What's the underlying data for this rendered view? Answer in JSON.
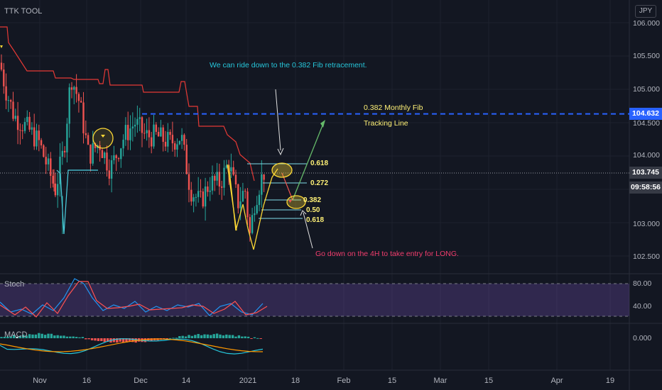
{
  "app": {
    "title": "TTK TOOL",
    "currency_button": "JPY"
  },
  "colors": {
    "background": "#131722",
    "bull_candle": "#26a69a",
    "bear_candle": "#ef5350",
    "trail_line": "#e53935",
    "fib_level": "#2962ff",
    "stoch_k": "#2196f3",
    "stoch_d": "#ff5252",
    "macd_line": "#26c6da",
    "signal_line": "#ff9800",
    "annotation_yellow": "#fff176",
    "annotation_cyan": "#26c6da",
    "annotation_pink": "#f23d6d"
  },
  "price_tags": {
    "fib_level": "104.632",
    "last_price": "103.745",
    "countdown": "09:58:56"
  },
  "annotations": {
    "ride_down": "We can ride down to the 0.382 Fib retracement.",
    "monthly_fib": "0.382 Monthly Fib",
    "tracking": "Tracking Line",
    "go_down": "Go down on the 4H to take entry for LONG.",
    "fib_labels": [
      "0.618",
      "0.272",
      "0.382",
      "0.50",
      "0.618"
    ]
  },
  "panes": {
    "stoch": "Stoch",
    "macd": "MACD"
  },
  "chart_data": {
    "type": "candlestick",
    "y_axis_labels": [
      "106.000",
      "105.500",
      "105.000",
      "104.500",
      "104.000",
      "103.000",
      "102.500"
    ],
    "ylim": [
      102.3,
      106.2
    ],
    "x_axis_labels": [
      "Nov",
      "16",
      "Dec",
      "14",
      "2021",
      "18",
      "Feb",
      "15",
      "Mar",
      "15",
      "Apr",
      "19"
    ],
    "horizontal_levels": {
      "fib_0382_monthly": 104.632,
      "last_price": 103.745
    },
    "stoch": {
      "y_axis_labels": [
        "80.00",
        "40.00"
      ],
      "ylim": [
        0,
        100
      ],
      "bands": [
        80,
        20
      ]
    },
    "macd": {
      "y_axis_labels": [
        "0.000"
      ]
    }
  }
}
